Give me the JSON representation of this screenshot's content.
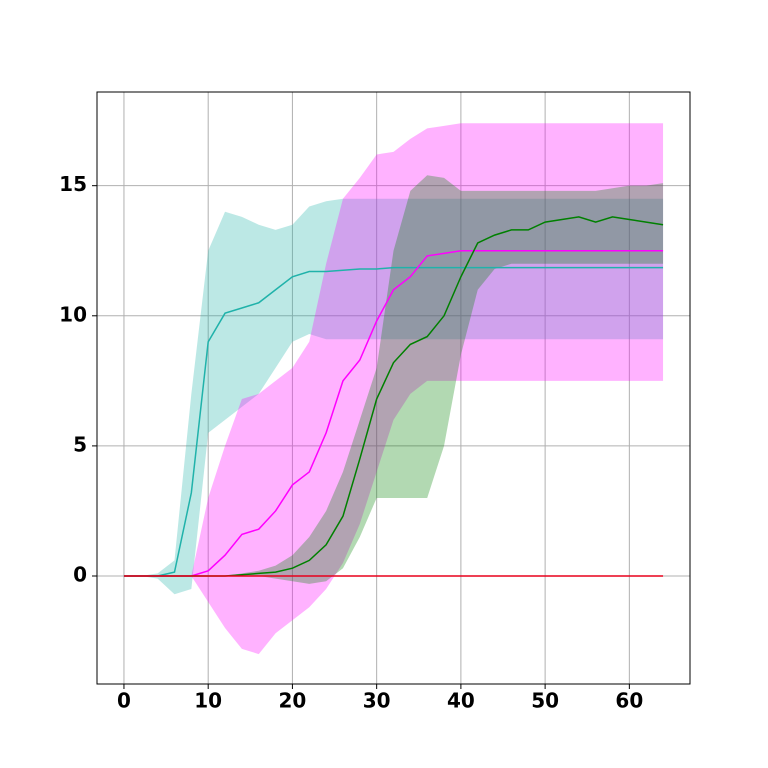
{
  "chart_data": {
    "type": "line",
    "x": [
      0,
      2,
      4,
      6,
      8,
      10,
      12,
      14,
      16,
      18,
      20,
      22,
      24,
      26,
      28,
      30,
      32,
      34,
      36,
      38,
      40,
      42,
      44,
      46,
      48,
      50,
      52,
      54,
      56,
      58,
      60,
      62,
      64
    ],
    "xlim": [
      -3.2,
      67.2
    ],
    "xticks": [
      0,
      10,
      20,
      30,
      40,
      50,
      60
    ],
    "ylim": [
      -4.15,
      18.6
    ],
    "yticks": [
      0,
      5,
      10,
      15
    ],
    "grid": true,
    "band_opacity": 0.3,
    "series": [
      {
        "color": "#20b2aa",
        "values": [
          0,
          0,
          0,
          0.15,
          3.2,
          9,
          10.1,
          10.3,
          10.5,
          11.0,
          11.5,
          11.7,
          11.7,
          11.75,
          11.8,
          11.8,
          11.85,
          11.85,
          11.85,
          11.85,
          11.85,
          11.85,
          11.85,
          11.85,
          11.85,
          11.85,
          11.85,
          11.85,
          11.85,
          11.85,
          11.85,
          11.85,
          11.85
        ],
        "upper": [
          0,
          0,
          0.1,
          0.6,
          7,
          12.5,
          14,
          13.8,
          13.5,
          13.3,
          13.5,
          14.2,
          14.4,
          14.5,
          14.5,
          14.5,
          14.5,
          14.5,
          14.5,
          14.5,
          14.5,
          14.5,
          14.5,
          14.5,
          14.5,
          14.5,
          14.5,
          14.5,
          14.5,
          14.5,
          14.5,
          14.5,
          14.5
        ],
        "lower": [
          0,
          0,
          -0.1,
          -0.7,
          -0.5,
          5.5,
          6,
          6.5,
          7,
          8,
          9,
          9.3,
          9.1,
          9.1,
          9.1,
          9.1,
          9.1,
          9.1,
          9.1,
          9.1,
          9.1,
          9.1,
          9.1,
          9.1,
          9.1,
          9.1,
          9.1,
          9.1,
          9.1,
          9.1,
          9.1,
          9.1,
          9.1
        ]
      },
      {
        "color": "#ff00ff",
        "values": [
          0,
          0,
          0,
          0,
          0,
          0.2,
          0.8,
          1.6,
          1.8,
          2.5,
          3.5,
          4.0,
          5.5,
          7.5,
          8.3,
          9.8,
          11,
          11.5,
          12.3,
          12.4,
          12.5,
          12.5,
          12.5,
          12.5,
          12.5,
          12.5,
          12.5,
          12.5,
          12.5,
          12.5,
          12.5,
          12.5,
          12.5
        ],
        "upper": [
          0,
          0,
          0,
          0,
          0,
          3,
          5,
          6.8,
          7,
          7.5,
          8,
          9,
          12,
          14.5,
          15.3,
          16.2,
          16.3,
          16.8,
          17.2,
          17.3,
          17.4,
          17.4,
          17.4,
          17.4,
          17.4,
          17.4,
          17.4,
          17.4,
          17.4,
          17.4,
          17.4,
          17.4,
          17.4
        ],
        "lower": [
          0,
          0,
          0,
          0,
          0,
          -1,
          -2,
          -2.8,
          -3,
          -2.2,
          -1.7,
          -1.2,
          -0.5,
          0.5,
          2,
          4,
          6,
          7,
          7.5,
          7.5,
          7.5,
          7.5,
          7.5,
          7.5,
          7.5,
          7.5,
          7.5,
          7.5,
          7.5,
          7.5,
          7.5,
          7.5,
          7.5
        ]
      },
      {
        "color": "#008000",
        "values": [
          0,
          0,
          0,
          0,
          0,
          0,
          0,
          0.05,
          0.1,
          0.15,
          0.3,
          0.6,
          1.2,
          2.3,
          4.5,
          6.8,
          8.2,
          8.9,
          9.2,
          10,
          11.5,
          12.8,
          13.1,
          13.3,
          13.3,
          13.6,
          13.7,
          13.8,
          13.6,
          13.8,
          13.7,
          13.6,
          13.5
        ],
        "upper": [
          0,
          0,
          0,
          0,
          0,
          0,
          0,
          0.1,
          0.2,
          0.4,
          0.8,
          1.5,
          2.5,
          4,
          6,
          8,
          12.5,
          14.8,
          15.4,
          15.3,
          14.8,
          14.8,
          14.8,
          14.8,
          14.8,
          14.8,
          14.8,
          14.8,
          14.8,
          14.9,
          15,
          15,
          15.1
        ],
        "lower": [
          0,
          0,
          0,
          0,
          0,
          0,
          0,
          0,
          0,
          -0.1,
          -0.2,
          -0.3,
          -0.2,
          0.3,
          1.5,
          3,
          3,
          3,
          3,
          5,
          8.5,
          11,
          11.8,
          12,
          12,
          12,
          12,
          12,
          12,
          12,
          12,
          12,
          12
        ]
      },
      {
        "color": "#e8001c",
        "values": [
          0,
          0,
          0,
          0,
          0,
          0,
          0,
          0,
          0,
          0,
          0,
          0,
          0,
          0,
          0,
          0,
          0,
          0,
          0,
          0,
          0,
          0,
          0,
          0,
          0,
          0,
          0,
          0,
          0,
          0,
          0,
          0,
          0
        ]
      }
    ]
  }
}
